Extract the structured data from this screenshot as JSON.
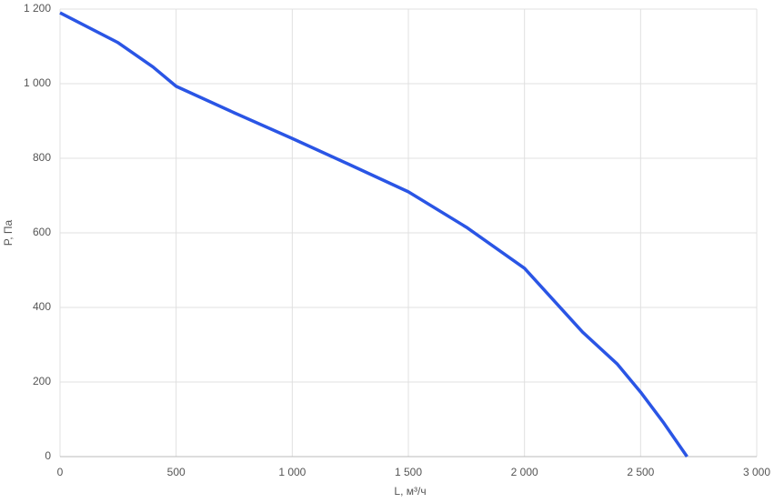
{
  "chart_data": {
    "type": "line",
    "x_label": "L, м³/ч",
    "y_label": "P, Па",
    "x": [
      0,
      250,
      400,
      500,
      750,
      1000,
      1250,
      1500,
      1750,
      2000,
      2250,
      2400,
      2500,
      2600,
      2700
    ],
    "series": [
      {
        "color": "#2a55e5",
        "values": [
          1190,
          1110,
          1045,
          993,
          922,
          853,
          782,
          710,
          615,
          505,
          334,
          248,
          173,
          90,
          0
        ]
      }
    ],
    "xlim": [
      0,
      3000
    ],
    "xticks": [
      0,
      500,
      {
        "value": 1000,
        "label": "1 000"
      },
      {
        "value": 1500,
        "label": "1 500"
      },
      {
        "value": 2000,
        "label": "2 000"
      },
      {
        "value": 2500,
        "label": "2 500"
      },
      {
        "value": 3000,
        "label": "3 000"
      }
    ],
    "ylim": [
      0,
      1200
    ],
    "yticks": [
      0,
      200,
      400,
      600,
      800,
      {
        "value": 1000,
        "label": "1 000"
      },
      {
        "value": 1200,
        "label": "1 200"
      }
    ],
    "grid": true
  }
}
